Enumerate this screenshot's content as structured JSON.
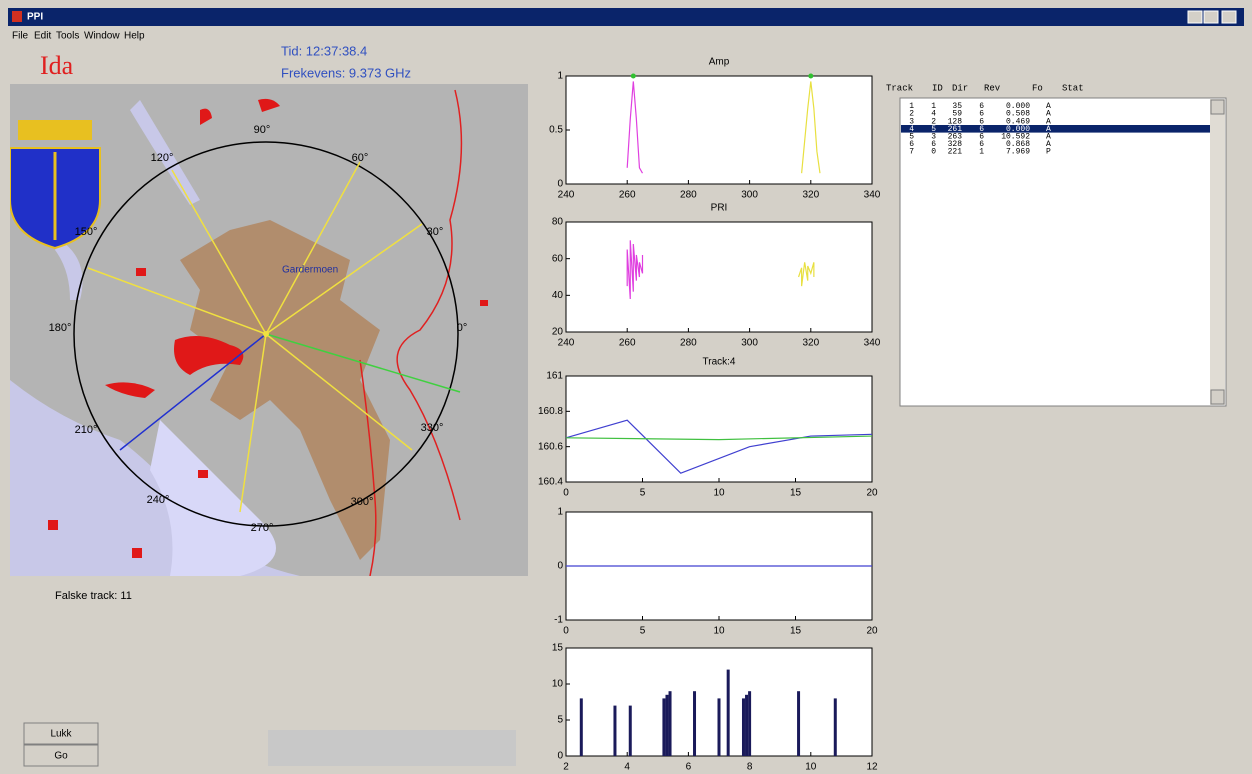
{
  "window": {
    "title": "PPI"
  },
  "menu": [
    "File",
    "Edit",
    "Tools",
    "Window",
    "Help"
  ],
  "info": {
    "name": "Ida",
    "time": "Tid: 12:37:38.4",
    "frequency": "Frekevens: 9.373 GHz",
    "false_tracks": "Falske track: 11"
  },
  "map": {
    "place": "Gardermoen",
    "angles": [
      "0°",
      "30°",
      "60°",
      "90°",
      "120°",
      "150°",
      "180°",
      "210°",
      "240°",
      "270°",
      "300°",
      "330°"
    ]
  },
  "buttons": [
    "Lukk",
    "Go"
  ],
  "plots": [
    {
      "type": "line",
      "title": "Amp",
      "xlim": [
        240,
        340
      ],
      "ylim": [
        0,
        1
      ],
      "xticks": [
        240,
        260,
        280,
        300,
        320,
        340
      ],
      "yticks": [
        0,
        0.5,
        1
      ],
      "series": [
        {
          "color": "#e040e0",
          "x": [
            260,
            261,
            262,
            263,
            264,
            265
          ],
          "y": [
            0.15,
            0.6,
            0.95,
            0.6,
            0.15,
            0.1
          ]
        },
        {
          "color": "#e8e040",
          "x": [
            317,
            318,
            319,
            320,
            321,
            322,
            323
          ],
          "y": [
            0.1,
            0.4,
            0.7,
            0.95,
            0.7,
            0.3,
            0.1
          ]
        }
      ],
      "markers": {
        "color": "#30c030",
        "x": [
          262,
          320
        ],
        "y": [
          1,
          1
        ]
      }
    },
    {
      "type": "line",
      "title": "PRI",
      "xlim": [
        240,
        340
      ],
      "ylim": [
        20,
        80
      ],
      "xticks": [
        240,
        260,
        280,
        300,
        320,
        340
      ],
      "yticks": [
        20,
        40,
        60,
        80
      ],
      "series": [
        {
          "color": "#e040e0",
          "x": [
            260,
            260,
            261,
            261,
            262,
            262,
            263,
            263,
            264,
            264,
            265,
            265
          ],
          "y": [
            45,
            65,
            38,
            70,
            42,
            68,
            48,
            62,
            50,
            58,
            52,
            62
          ]
        },
        {
          "color": "#e8e040",
          "x": [
            316,
            317,
            317,
            318,
            319,
            319,
            320,
            321,
            321
          ],
          "y": [
            50,
            55,
            45,
            58,
            48,
            56,
            52,
            58,
            50
          ]
        }
      ]
    },
    {
      "type": "line",
      "title": "Track:4",
      "xlim": [
        0,
        20
      ],
      "ylim": [
        160.4,
        161
      ],
      "xticks": [
        0,
        5,
        10,
        15,
        20
      ],
      "yticks": [
        160.4,
        160.6,
        160.8,
        161
      ],
      "series": [
        {
          "color": "#4040d0",
          "x": [
            0,
            4,
            7.5,
            12,
            16,
            20
          ],
          "y": [
            160.65,
            160.75,
            160.45,
            160.6,
            160.66,
            160.67
          ]
        },
        {
          "color": "#40c040",
          "x": [
            0,
            10,
            20
          ],
          "y": [
            160.65,
            160.64,
            160.66
          ]
        }
      ]
    },
    {
      "type": "line",
      "xlim": [
        0,
        20
      ],
      "ylim": [
        -1,
        1
      ],
      "xticks": [
        0,
        5,
        10,
        15,
        20
      ],
      "yticks": [
        -1,
        0,
        1
      ],
      "series": [
        {
          "color": "#4040d0",
          "x": [
            0,
            20
          ],
          "y": [
            0,
            0
          ]
        }
      ]
    },
    {
      "type": "bar",
      "xlim": [
        2,
        12
      ],
      "ylim": [
        0,
        15
      ],
      "xticks": [
        2,
        4,
        6,
        8,
        10,
        12
      ],
      "yticks": [
        0,
        5,
        10,
        15
      ],
      "color": "#1a1a5a",
      "x": [
        2.5,
        3.6,
        4.1,
        5.2,
        5.3,
        5.4,
        6.2,
        7.0,
        7.3,
        7.8,
        7.9,
        8.0,
        9.6,
        10.8
      ],
      "values": [
        8,
        7,
        7,
        8,
        8.5,
        9,
        9,
        8,
        12,
        8,
        8.5,
        9,
        9,
        8
      ]
    }
  ],
  "table": {
    "columns": [
      "Track",
      "ID",
      "Dir",
      "Rev",
      "Fo",
      "Stat"
    ],
    "rows": [
      [
        "1",
        "1",
        "35",
        "6",
        "0.000",
        "A"
      ],
      [
        "2",
        "4",
        "59",
        "6",
        "0.508",
        "A"
      ],
      [
        "3",
        "2",
        "128",
        "6",
        "0.469",
        "A"
      ],
      [
        "4",
        "5",
        "261",
        "6",
        "0.000",
        "A"
      ],
      [
        "5",
        "3",
        "263",
        "6",
        "10.592",
        "A"
      ],
      [
        "6",
        "6",
        "328",
        "6",
        "0.868",
        "A"
      ],
      [
        "7",
        "0",
        "221",
        "1",
        "7.969",
        "P"
      ]
    ],
    "selected_row": 3
  }
}
